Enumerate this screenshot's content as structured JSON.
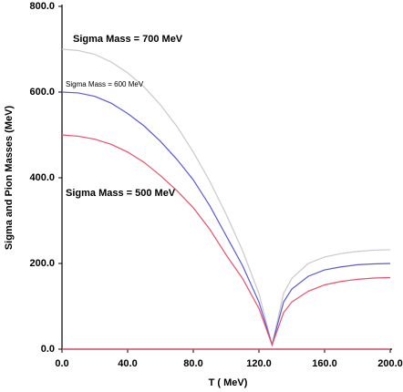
{
  "chart_data": {
    "type": "line",
    "xlabel": "T ( MeV)",
    "ylabel": "Sigma and Pion Masses (MeV)",
    "x": [
      0,
      10,
      20,
      30,
      40,
      50,
      60,
      70,
      80,
      90,
      100,
      110,
      120,
      128,
      135,
      140,
      150,
      160,
      170,
      180,
      190,
      200
    ],
    "series": [
      {
        "name": "Sigma Mass = 700 MeV",
        "color": "#c8c8d0",
        "label_color": "#000000",
        "values": [
          700,
          697,
          688,
          670,
          645,
          612,
          570,
          520,
          460,
          392,
          315,
          230,
          130,
          10,
          130,
          165,
          200,
          215,
          223,
          228,
          231,
          232
        ]
      },
      {
        "name": "Sigma Mass = 600 MeV",
        "color": "#5a5ad2",
        "label_color": "#3a3ad0",
        "values": [
          600,
          598,
          590,
          574,
          550,
          521,
          485,
          443,
          395,
          335,
          265,
          195,
          110,
          10,
          110,
          140,
          170,
          185,
          192,
          197,
          199,
          200
        ]
      },
      {
        "name": "Sigma Mass = 500 MeV",
        "color": "#e8506a",
        "label_color": "#e82040",
        "values": [
          500,
          497,
          490,
          478,
          460,
          436,
          405,
          370,
          330,
          280,
          220,
          165,
          95,
          10,
          85,
          110,
          135,
          150,
          158,
          163,
          166,
          167
        ]
      },
      {
        "color": "#e8506a",
        "values": [
          0,
          0,
          0,
          0,
          0,
          0,
          0,
          0,
          0,
          0,
          0,
          0,
          0,
          0,
          0,
          0,
          0,
          0,
          0,
          0,
          0,
          0
        ]
      }
    ],
    "xlim": [
      0,
      200
    ],
    "ylim": [
      0,
      800
    ],
    "xticks": [
      {
        "value": 0,
        "label": "0.0"
      },
      {
        "value": 40,
        "label": "40.0"
      },
      {
        "value": 80,
        "label": "80.0"
      },
      {
        "value": 120,
        "label": "120.0"
      },
      {
        "value": 160,
        "label": "160.0"
      },
      {
        "value": 200,
        "label": "200.0"
      }
    ],
    "yticks": [
      {
        "value": 0,
        "label": "0.0"
      },
      {
        "value": 200,
        "label": "200.0"
      },
      {
        "value": 400,
        "label": "400.0"
      },
      {
        "value": 600,
        "label": "600.0"
      },
      {
        "value": 800,
        "label": "800.0"
      }
    ]
  }
}
